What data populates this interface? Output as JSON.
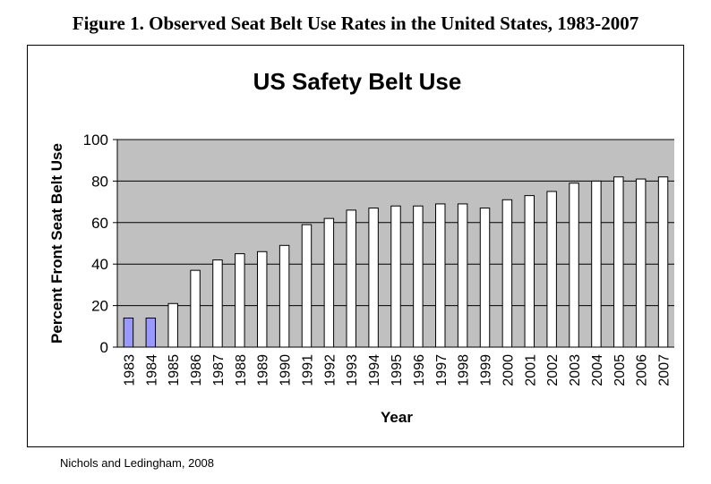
{
  "figure_caption": "Figure 1. Observed Seat Belt Use Rates in the United States, 1983-2007",
  "source_note": "Nichols and Ledingham, 2008",
  "colors": {
    "plot_background": "#c0c0c0",
    "bar_default": "#ffffff",
    "bar_highlight": "#9999ff",
    "bar_stroke": "#000000",
    "gridline": "#000000"
  },
  "chart_data": {
    "type": "bar",
    "title": "US Safety Belt Use",
    "xlabel": "Year",
    "ylabel": "Percent Front Seat Belt Use",
    "ylim": [
      0,
      100
    ],
    "yticks": [
      0,
      20,
      40,
      60,
      80,
      100
    ],
    "grid": true,
    "legend": "none",
    "categories": [
      "1983",
      "1984",
      "1985",
      "1986",
      "1987",
      "1988",
      "1989",
      "1990",
      "1991",
      "1992",
      "1993",
      "1994",
      "1995",
      "1996",
      "1997",
      "1998",
      "1999",
      "2000",
      "2001",
      "2002",
      "2003",
      "2004",
      "2005",
      "2006",
      "2007"
    ],
    "values": [
      14,
      14,
      21,
      37,
      42,
      45,
      46,
      49,
      59,
      62,
      66,
      67,
      68,
      68,
      69,
      69,
      67,
      71,
      73,
      75,
      79,
      80,
      82,
      81,
      82
    ],
    "highlighted_categories": [
      "1983",
      "1984"
    ]
  }
}
